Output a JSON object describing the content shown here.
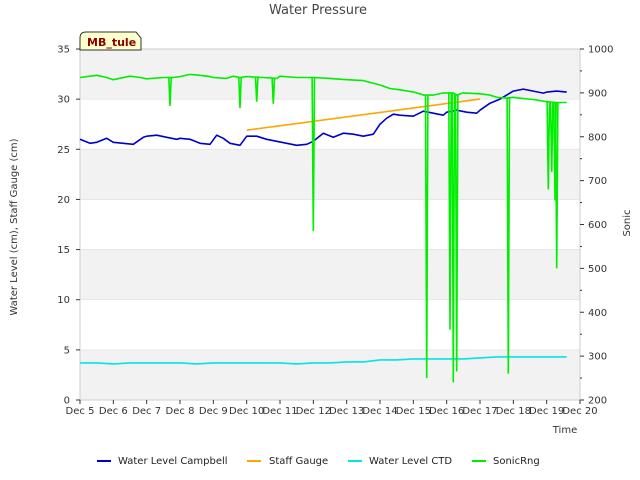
{
  "chart_data": {
    "type": "line",
    "title": "Water Pressure",
    "xlabel": "Time",
    "ylabel": "Water Level (cm), Staff Gauge (cm)",
    "y2label": "Sonic",
    "site_label": "MB_tule",
    "xlim": [
      5,
      20
    ],
    "ylim": [
      0,
      35
    ],
    "y2lim": [
      200,
      1000
    ],
    "x_ticks": [
      5,
      6,
      7,
      8,
      9,
      10,
      11,
      12,
      13,
      14,
      15,
      16,
      17,
      18,
      19,
      20
    ],
    "x_tick_labels": [
      "Dec 5",
      "Dec 6",
      "Dec 7",
      "Dec 8",
      "Dec 9",
      "Dec 10",
      "Dec 11",
      "Dec 12",
      "Dec 13",
      "Dec 14",
      "Dec 15",
      "Dec 16",
      "Dec 17",
      "Dec 18",
      "Dec 19",
      "Dec 20"
    ],
    "y_ticks": [
      0,
      5,
      10,
      15,
      20,
      25,
      30,
      35
    ],
    "y_tick_labels": [
      "0",
      "5",
      "10",
      "15",
      "20",
      "25",
      "30",
      "35"
    ],
    "y2_ticks": [
      200,
      300,
      400,
      500,
      600,
      700,
      800,
      900,
      1000
    ],
    "y2_tick_labels": [
      "200",
      "300",
      "400",
      "500",
      "600",
      "700",
      "800",
      "900",
      "1000"
    ],
    "legend_position": "bottom",
    "series": [
      {
        "name": "Water Level Campbell",
        "color": "#0000cc",
        "axis": "left",
        "x": [
          5.0,
          5.3,
          5.5,
          5.8,
          6.0,
          6.3,
          6.6,
          6.9,
          7.0,
          7.3,
          7.6,
          7.9,
          8.0,
          8.3,
          8.6,
          8.9,
          9.1,
          9.3,
          9.5,
          9.8,
          10.0,
          10.3,
          10.6,
          10.9,
          11.2,
          11.5,
          11.8,
          12.0,
          12.3,
          12.6,
          12.9,
          13.2,
          13.5,
          13.8,
          14.0,
          14.2,
          14.4,
          14.6,
          15.0,
          15.3,
          15.6,
          15.9,
          16.0,
          16.3,
          16.6,
          16.9,
          17.0,
          17.3,
          17.6,
          17.9,
          18.0,
          18.3,
          18.6,
          18.9,
          19.0,
          19.3,
          19.6
        ],
        "values": [
          26.0,
          25.6,
          25.7,
          26.1,
          25.7,
          25.6,
          25.5,
          26.2,
          26.3,
          26.4,
          26.2,
          26.0,
          26.1,
          26.0,
          25.6,
          25.5,
          26.4,
          26.1,
          25.6,
          25.4,
          26.3,
          26.3,
          26.0,
          25.8,
          25.6,
          25.4,
          25.5,
          25.8,
          26.6,
          26.2,
          26.6,
          26.5,
          26.3,
          26.5,
          27.5,
          28.1,
          28.5,
          28.4,
          28.3,
          28.8,
          28.6,
          28.4,
          28.7,
          28.9,
          28.7,
          28.6,
          28.9,
          29.6,
          30.0,
          30.6,
          30.8,
          31.0,
          30.8,
          30.6,
          30.7,
          30.8,
          30.7
        ]
      },
      {
        "name": "Staff Gauge",
        "color": "#ffa500",
        "axis": "left",
        "x": [
          10.0,
          17.0
        ],
        "values": [
          26.9,
          30.0
        ]
      },
      {
        "name": "Water Level CTD",
        "color": "#00e5e5",
        "axis": "left",
        "x": [
          5.0,
          5.5,
          6.0,
          6.5,
          7.0,
          7.5,
          8.0,
          8.5,
          9.0,
          9.5,
          10.0,
          10.5,
          11.0,
          11.5,
          12.0,
          12.5,
          13.0,
          13.5,
          14.0,
          14.5,
          15.0,
          15.5,
          16.0,
          16.5,
          17.0,
          17.5,
          18.0,
          18.5,
          19.0,
          19.6
        ],
        "values": [
          3.7,
          3.7,
          3.6,
          3.7,
          3.7,
          3.7,
          3.7,
          3.6,
          3.7,
          3.7,
          3.7,
          3.7,
          3.7,
          3.6,
          3.7,
          3.7,
          3.8,
          3.8,
          4.0,
          4.0,
          4.1,
          4.1,
          4.1,
          4.1,
          4.2,
          4.3,
          4.3,
          4.3,
          4.3,
          4.3
        ]
      },
      {
        "name": "SonicRng",
        "color": "#00ee00",
        "axis": "right",
        "x": [
          5.0,
          5.5,
          5.8,
          6.0,
          6.5,
          6.8,
          7.0,
          7.5,
          7.8,
          8.0,
          8.3,
          8.6,
          8.9,
          9.0,
          9.4,
          9.6,
          9.8,
          10.0,
          10.5,
          10.9,
          11.0,
          11.5,
          11.9,
          12.0,
          12.5,
          13.0,
          13.5,
          14.0,
          14.3,
          14.6,
          15.0,
          15.2,
          15.3,
          15.6,
          15.9,
          16.0,
          16.1,
          16.2,
          16.3,
          16.5,
          17.0,
          17.3,
          17.5,
          17.8,
          18.0,
          18.3,
          18.6,
          19.0,
          19.3,
          19.6
        ],
        "values": [
          935,
          940,
          935,
          930,
          938,
          935,
          932,
          935,
          935,
          937,
          942,
          940,
          937,
          935,
          933,
          938,
          935,
          937,
          935,
          933,
          938,
          935,
          935,
          935,
          933,
          930,
          928,
          918,
          910,
          907,
          902,
          898,
          895,
          895,
          900,
          900,
          900,
          900,
          895,
          900,
          898,
          895,
          890,
          888,
          890,
          887,
          885,
          880,
          878,
          878
        ]
      }
    ],
    "spikes": [
      {
        "series": "SonicRng",
        "x": 7.7,
        "min": 870
      },
      {
        "series": "SonicRng",
        "x": 9.8,
        "min": 865
      },
      {
        "series": "SonicRng",
        "x": 10.3,
        "min": 880
      },
      {
        "series": "SonicRng",
        "x": 10.8,
        "min": 875
      },
      {
        "series": "SonicRng",
        "x": 12.0,
        "min": 585
      },
      {
        "series": "SonicRng",
        "x": 15.4,
        "min": 250
      },
      {
        "series": "SonicRng",
        "x": 16.1,
        "min": 360
      },
      {
        "series": "SonicRng",
        "x": 16.2,
        "min": 240
      },
      {
        "series": "SonicRng",
        "x": 16.3,
        "min": 265
      },
      {
        "series": "SonicRng",
        "x": 17.85,
        "min": 260
      },
      {
        "series": "SonicRng",
        "x": 19.05,
        "min": 680
      },
      {
        "series": "SonicRng",
        "x": 19.15,
        "min": 720
      },
      {
        "series": "SonicRng",
        "x": 19.25,
        "min": 655
      },
      {
        "series": "SonicRng",
        "x": 19.3,
        "min": 500
      }
    ]
  }
}
